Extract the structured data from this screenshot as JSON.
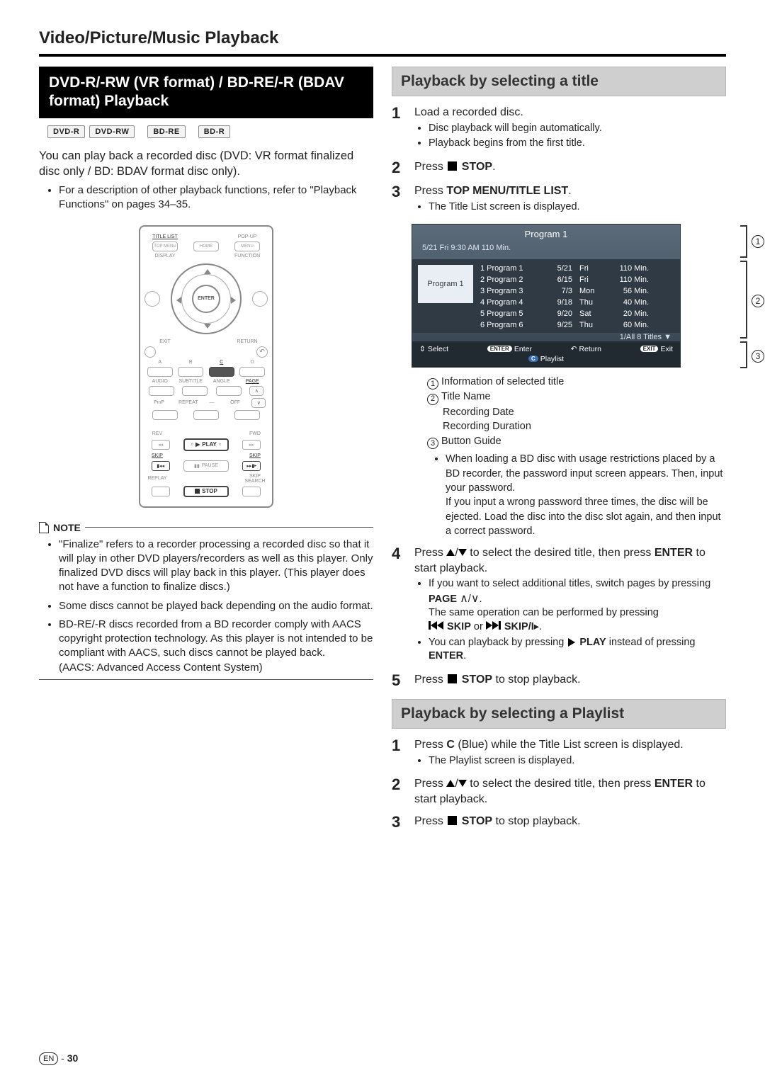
{
  "page_title": "Video/Picture/Music Playback",
  "left": {
    "heading": "DVD-R/-RW (VR format) / BD-RE/-R (BDAV format) Playback",
    "badges": [
      "DVD-R",
      "DVD-RW",
      "BD-RE",
      "BD-R"
    ],
    "intro": "You can play back a recorded disc (DVD: VR format finalized disc only / BD: BDAV format disc only).",
    "intro_bullet": "For a description of other playback functions, refer to \"Playback Functions\" on pages 34–35.",
    "remote": {
      "top_labels": [
        "TITLE LIST",
        "",
        "POP-UP"
      ],
      "top_sub": [
        "TOP MENU",
        "HOME",
        "MENU"
      ],
      "side_l": "DISPLAY",
      "side_r": "FUNCTION",
      "center": "ENTER",
      "exit": "EXIT",
      "return": "RETURN",
      "color_labels": [
        "A",
        "B",
        "C",
        "D"
      ],
      "row4": [
        "AUDIO",
        "SUBTITLE",
        "ANGLE",
        "PAGE"
      ],
      "row5": [
        "PinP",
        "REPEAT",
        "OFF"
      ],
      "rev": "REV",
      "fwd": "FWD",
      "play": "PLAY",
      "skip": "SKIP",
      "pause": "PAUSE",
      "replay": "REPLAY",
      "skipsearch": "SKIP SEARCH",
      "stop": "STOP"
    },
    "note_label": "NOTE",
    "notes": [
      "\"Finalize\" refers to a recorder processing a recorded disc so that it will play in other DVD players/recorders as well as this player. Only finalized DVD discs will play back in this player. (This player does not have a function to finalize discs.)",
      "Some discs cannot be played back depending on the audio format.",
      "BD-RE/-R discs recorded from a BD recorder comply with AACS copyright protection technology. As this player is not intended to be compliant with AACS, such discs cannot be played back."
    ],
    "aacs_line": "(AACS: Advanced Access Content System)"
  },
  "right": {
    "heading1": "Playback by selecting a title",
    "steps1": {
      "s1_main": "Load a recorded disc.",
      "s1_bullets": [
        "Disc playback will begin automatically.",
        "Playback begins from the first title."
      ],
      "s2_pre": "Press ",
      "s2_post": " STOP",
      "s3_pre": "Press ",
      "s3_bold": "TOP MENU/TITLE LIST",
      "s3_bullets": [
        "The Title List screen is displayed."
      ]
    },
    "title_list": {
      "header_title": "Program 1",
      "header_info": "5/21    Fri   9:30 AM   110 Min.",
      "thumb_label": "Program 1",
      "rows": [
        {
          "n": "1 Program 1",
          "d": "5/21",
          "w": "Fri",
          "m": "110 Min."
        },
        {
          "n": "2 Program 2",
          "d": "6/15",
          "w": "Fri",
          "m": "110 Min."
        },
        {
          "n": "3 Program 3",
          "d": "7/3",
          "w": "Mon",
          "m": "56 Min."
        },
        {
          "n": "4 Program 4",
          "d": "9/18",
          "w": "Thu",
          "m": "40 Min."
        },
        {
          "n": "5 Program 5",
          "d": "9/20",
          "w": "Sat",
          "m": "20 Min."
        },
        {
          "n": "6 Program 6",
          "d": "9/25",
          "w": "Thu",
          "m": "60 Min."
        }
      ],
      "footer_count": "1/All 8 Titles  ▼",
      "guide": {
        "select": "Select",
        "enter": "Enter",
        "return": "Return",
        "playlist": "Playlist",
        "exit": "Exit"
      },
      "callouts": [
        "1",
        "2",
        "3"
      ]
    },
    "legend": {
      "l1": "Information of selected title",
      "l2": "Title Name",
      "l2b": "Recording Date",
      "l2c": "Recording Duration",
      "l3": "Button Guide",
      "bd_note": "When loading a BD disc with usage restrictions placed by a BD recorder, the password input screen appears. Then, input your password.",
      "bd_note2": "If you input a wrong password three times, the disc will be ejected. Load the disc into the disc slot again, and then input a correct password."
    },
    "steps4": {
      "main_a": "Press ",
      "main_b": " to select the desired title, then press ",
      "main_c": "ENTER",
      "main_d": " to start playback.",
      "b1a": "If you want to select additional titles, switch pages by pressing ",
      "b1b": "PAGE",
      "b1c": "The same operation can be performed by pressing",
      "b1d": "SKIP",
      "b1e": " or ",
      "b1f": "SKIP/I",
      "b2a": "You can playback by pressing ",
      "b2b": "PLAY",
      "b2c": " instead of pressing ",
      "b2d": "ENTER"
    },
    "step5_a": "Press ",
    "step5_b": " STOP",
    "step5_c": " to stop playback.",
    "heading2": "Playback by selecting a Playlist",
    "pl": {
      "s1a": "Press ",
      "s1b": "C",
      "s1c": " (Blue) while the Title List screen is displayed.",
      "s1_bullet": "The Playlist screen is displayed.",
      "s2a": "Press ",
      "s2b": " to select the desired title, then press ",
      "s2c": "ENTER",
      "s2d": " to start playback.",
      "s3a": "Press ",
      "s3b": " STOP",
      "s3c": " to stop playback."
    }
  },
  "footer": {
    "lang": "EN",
    "page": "30"
  }
}
